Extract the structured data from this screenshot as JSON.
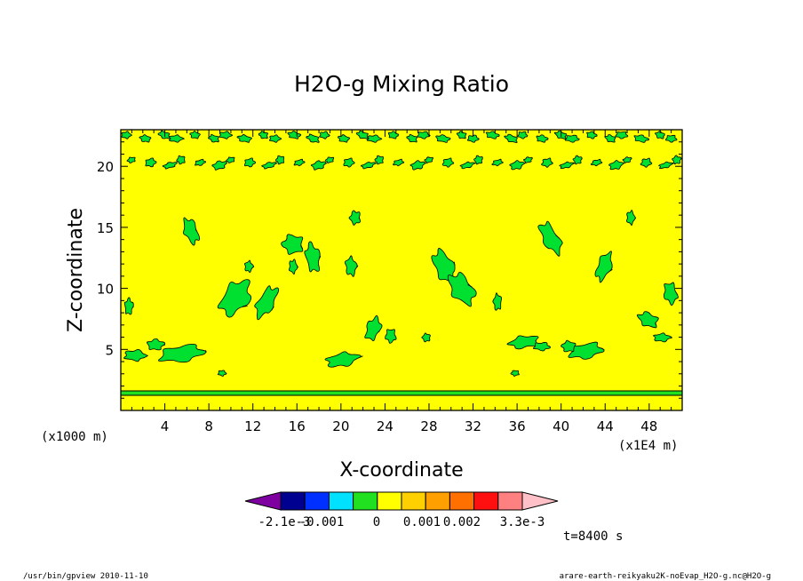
{
  "chart_data": {
    "type": "heatmap",
    "title": "H2O-g Mixing Ratio",
    "xlabel": "X-coordinate",
    "ylabel": "Z-coordinate",
    "x_unit": "(x1E4 m)",
    "y_unit": "(x1000 m)",
    "xlim": [
      0,
      51
    ],
    "ylim": [
      0,
      23
    ],
    "x_ticks": [
      "4",
      "8",
      "12",
      "16",
      "20",
      "24",
      "28",
      "32",
      "36",
      "40",
      "44",
      "48"
    ],
    "y_ticks": [
      "5",
      "10",
      "15",
      "20"
    ],
    "time_label": "t=8400 s",
    "colorbar": {
      "labels": [
        "-2.1e-3",
        "-0.001",
        "0",
        "0.001",
        "0.002",
        "3.3e-3"
      ],
      "colors": [
        "#7f00a0",
        "#000090",
        "#0030ff",
        "#00e0ff",
        "#20e020",
        "#ffff00",
        "#ffd000",
        "#ffa000",
        "#ff7000",
        "#ff1010",
        "#ff8080",
        "#ffc0c8"
      ]
    },
    "background_color": "#ffff00",
    "contour_color": "#00e030"
  },
  "footer": {
    "left": "/usr/bin/gpview  2010-11-10",
    "right": "arare-earth-reikyaku2K-noEvap_H2O-g.nc@H2O-g"
  }
}
